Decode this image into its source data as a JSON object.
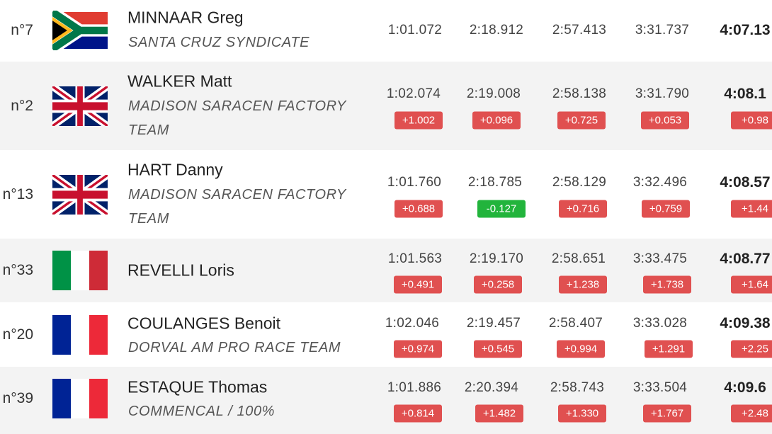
{
  "rows": [
    {
      "position": "n°7",
      "name": "MINNAAR Greg",
      "team": "SANTA CRUZ SYNDICATE",
      "splits": [
        "1:01.072",
        "2:18.912",
        "2:57.413",
        "3:31.737"
      ],
      "time": "4:07.13"
    },
    {
      "position": "n°2",
      "name": "WALKER Matt",
      "team": "MADISON SARACEN FACTORY TEAM",
      "splits": [
        "1:02.074",
        "2:19.008",
        "2:58.138",
        "3:31.790"
      ],
      "diffs": [
        "+1.002",
        "+0.096",
        "+0.725",
        "+0.053"
      ],
      "time": "4:08.1",
      "gap": "+0.98"
    },
    {
      "position": "n°13",
      "name": "HART Danny",
      "team": "MADISON SARACEN FACTORY TEAM",
      "splits": [
        "1:01.760",
        "2:18.785",
        "2:58.129",
        "3:32.496"
      ],
      "diffs": [
        "+0.688",
        "-0.127",
        "+0.716",
        "+0.759"
      ],
      "time": "4:08.57",
      "gap": "+1.44"
    },
    {
      "position": "n°33",
      "name": "REVELLI Loris",
      "splits": [
        "1:01.563",
        "2:19.170",
        "2:58.651",
        "3:33.475"
      ],
      "diffs": [
        "+0.491",
        "+0.258",
        "+1.238",
        "+1.738"
      ],
      "time": "4:08.77",
      "gap": "+1.64"
    },
    {
      "position": "n°20",
      "name": "COULANGES Benoit",
      "team": "DORVAL AM PRO RACE TEAM",
      "splits": [
        "1:02.046",
        "2:19.457",
        "2:58.407",
        "3:33.028"
      ],
      "diffs": [
        "+0.974",
        "+0.545",
        "+0.994",
        "+1.291"
      ],
      "time": "4:09.38",
      "gap": "+2.25"
    },
    {
      "position": "n°39",
      "name": "ESTAQUE Thomas",
      "team": "COMMENCAL / 100%",
      "splits": [
        "1:01.886",
        "2:20.394",
        "2:58.743",
        "3:33.504"
      ],
      "diffs": [
        "+0.814",
        "+1.482",
        "+1.330",
        "+1.767"
      ],
      "time": "4:09.6",
      "gap": "+2.48"
    }
  ]
}
